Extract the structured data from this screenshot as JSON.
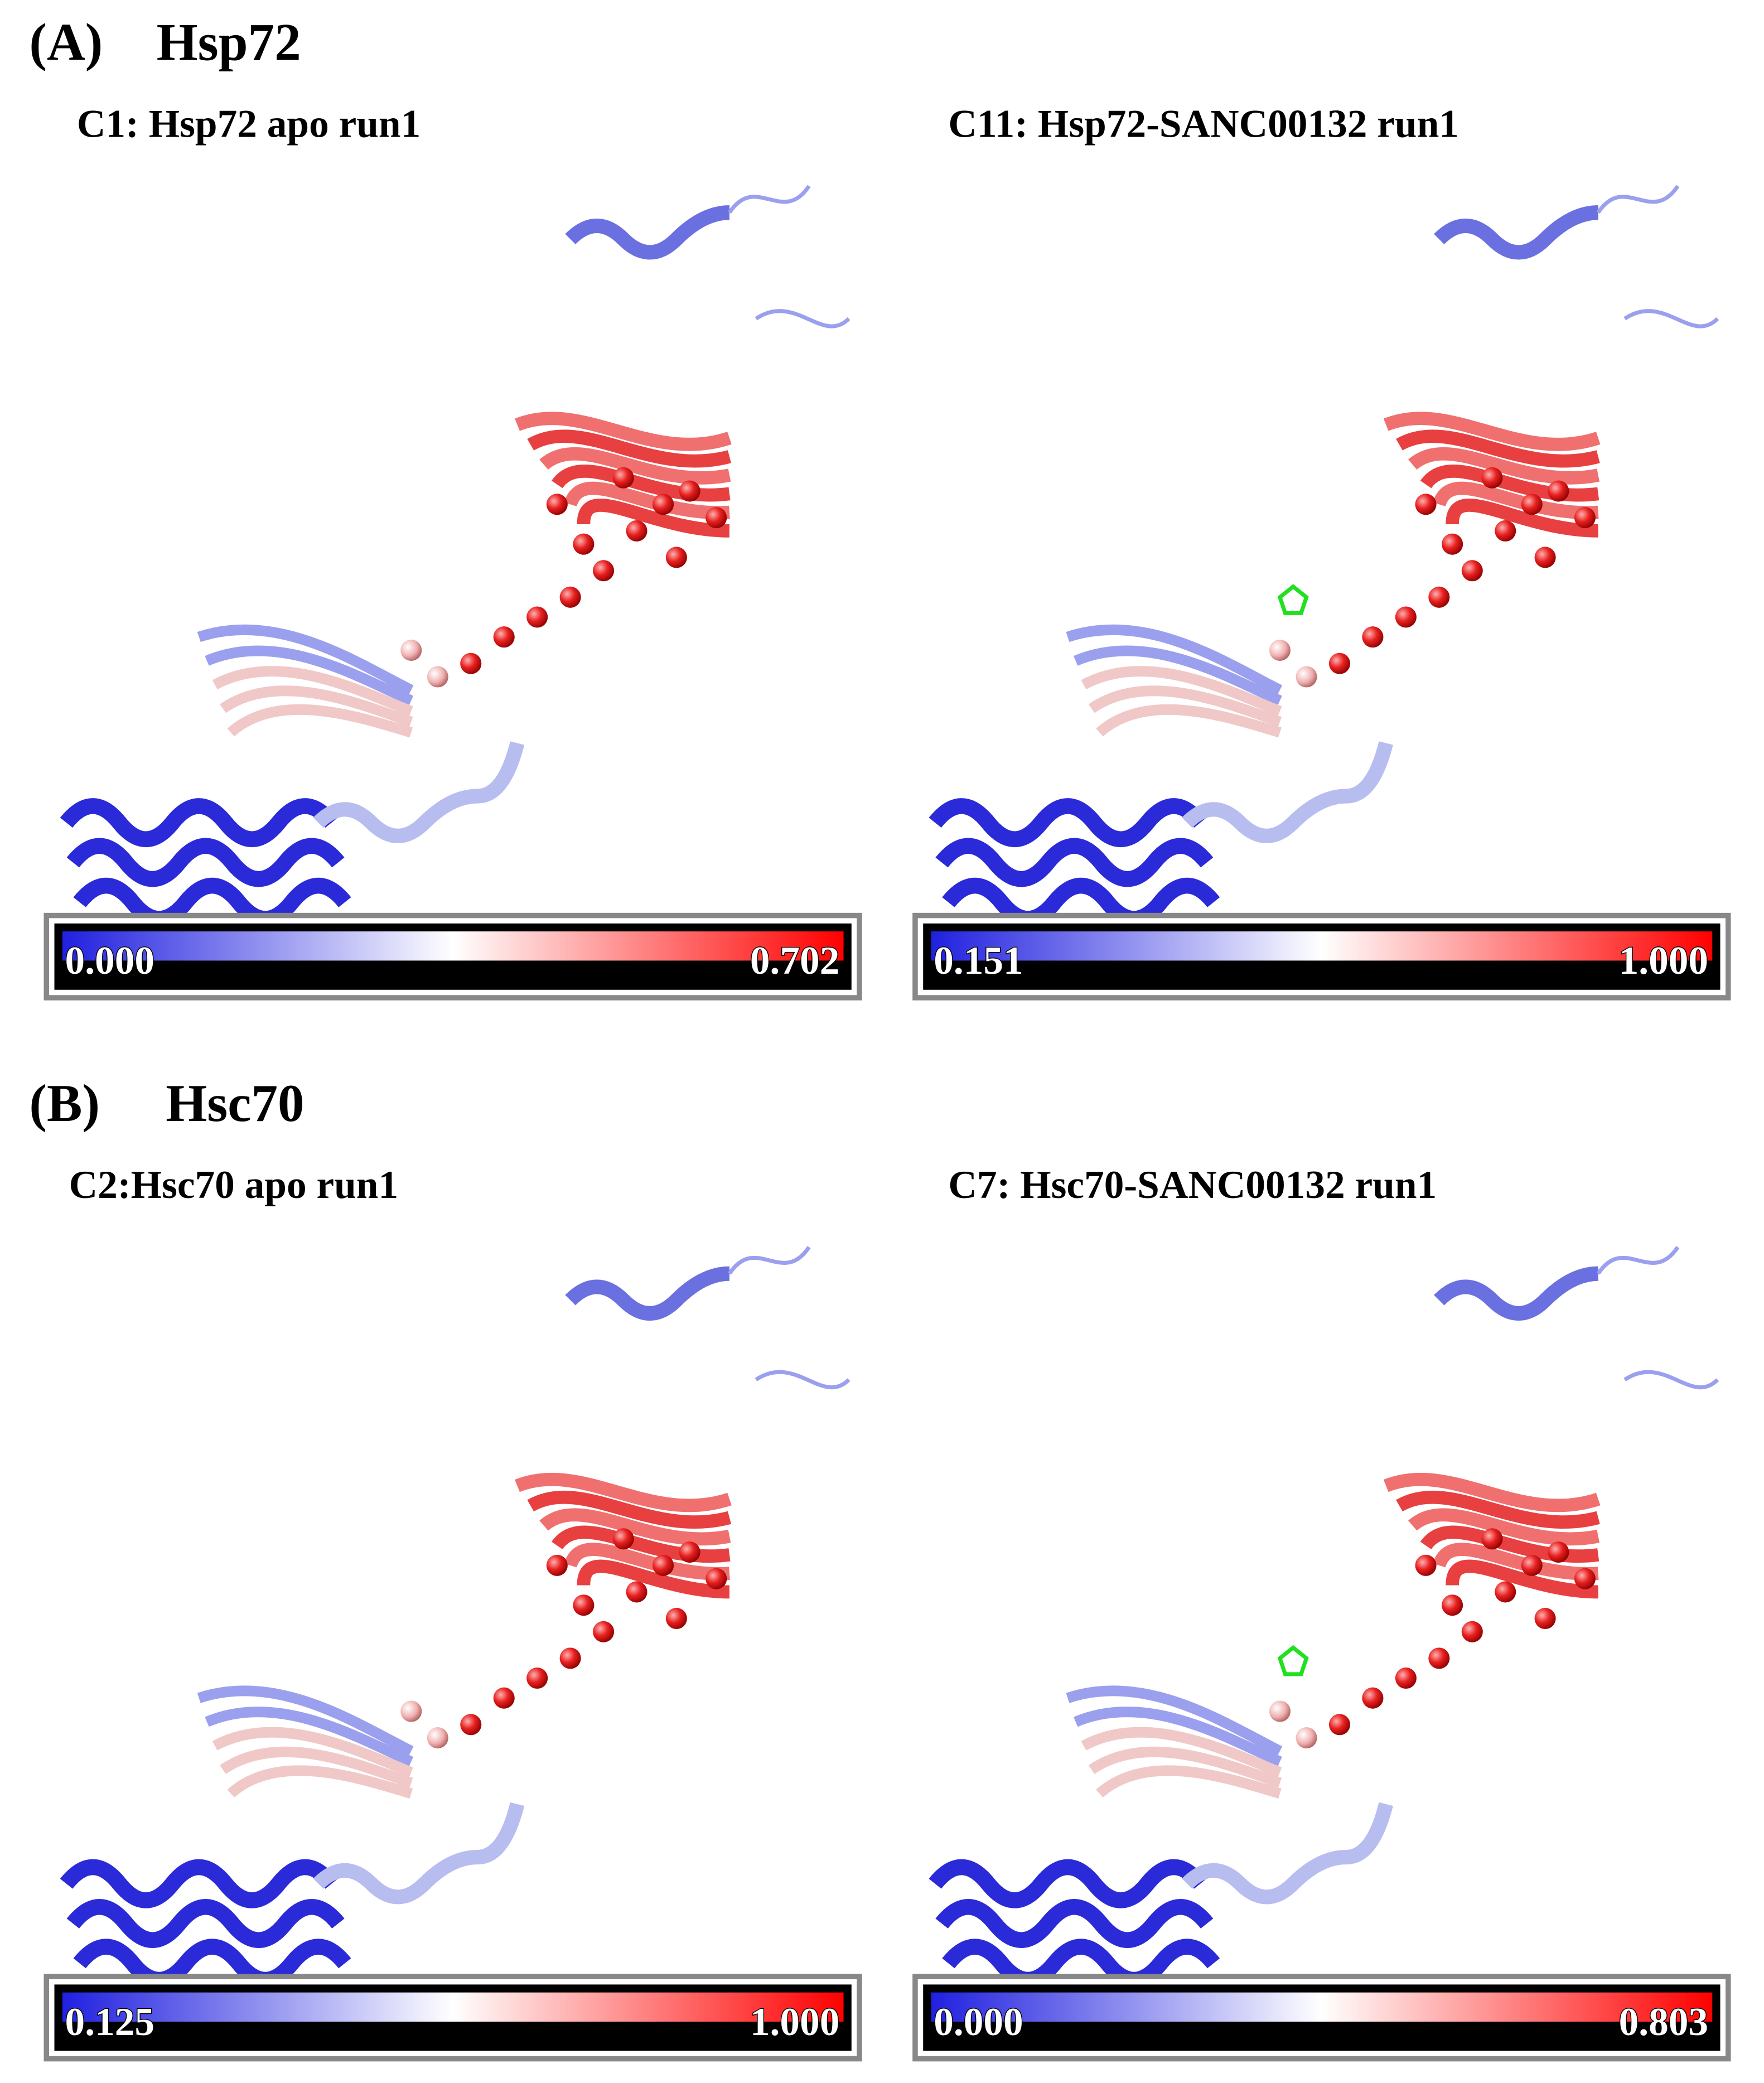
{
  "panels": [
    {
      "label": "(A)",
      "title": "Hsp72",
      "views": [
        {
          "caption": "C1: Hsp72 apo run1",
          "scale_min": "0.000",
          "scale_max": "0.702"
        },
        {
          "caption": "C11: Hsp72-SANC00132 run1",
          "scale_min": "0.151",
          "scale_max": "1.000"
        }
      ]
    },
    {
      "label": "(B)",
      "title": "Hsc70",
      "views": [
        {
          "caption": "C2:Hsc70 apo run1",
          "scale_min": "0.125",
          "scale_max": "1.000"
        },
        {
          "caption": "C7: Hsc70-SANC00132 run1",
          "scale_min": "0.000",
          "scale_max": "0.803"
        }
      ]
    }
  ]
}
